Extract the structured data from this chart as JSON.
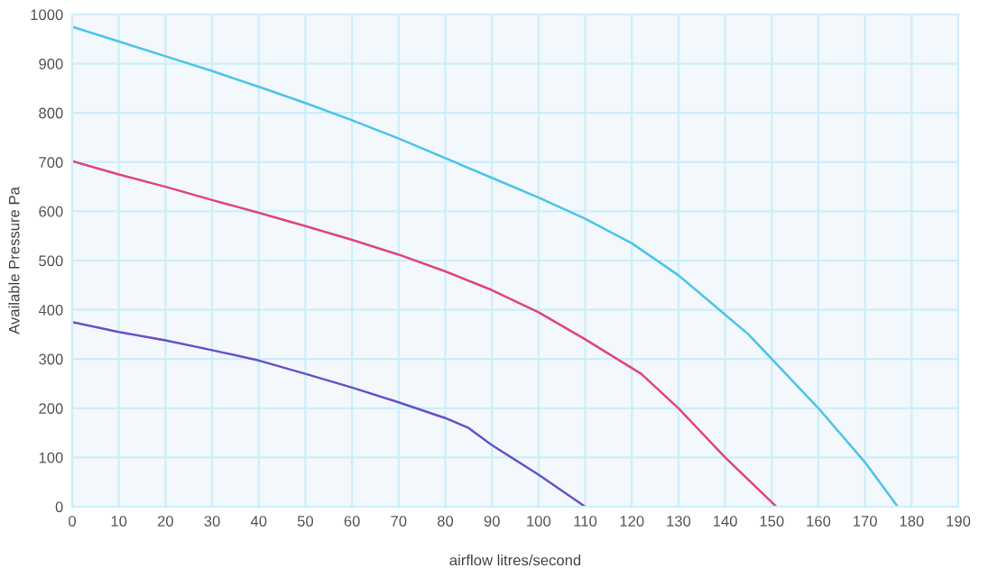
{
  "chart_data": {
    "type": "line",
    "xlabel": "airflow litres/second",
    "ylabel": "Available Pressure Pa",
    "xlim": [
      0,
      190
    ],
    "ylim": [
      0,
      1000
    ],
    "xticks": [
      0,
      10,
      20,
      30,
      40,
      50,
      60,
      70,
      80,
      90,
      100,
      110,
      120,
      130,
      140,
      150,
      160,
      170,
      180,
      190
    ],
    "yticks": [
      0,
      100,
      200,
      300,
      400,
      500,
      600,
      700,
      800,
      900,
      1000
    ],
    "grid": true,
    "series": [
      {
        "color": "#4cc3e8",
        "x": [
          0,
          10,
          20,
          30,
          40,
          50,
          60,
          70,
          80,
          90,
          100,
          110,
          120,
          130,
          140,
          145,
          150,
          160,
          170,
          177
        ],
        "values": [
          975,
          945,
          915,
          885,
          853,
          820,
          785,
          748,
          708,
          668,
          628,
          585,
          535,
          470,
          390,
          350,
          300,
          200,
          90,
          0
        ]
      },
      {
        "color": "#e0457b",
        "x": [
          0,
          10,
          20,
          30,
          40,
          50,
          60,
          70,
          80,
          90,
          100,
          110,
          122,
          130,
          140,
          151
        ],
        "values": [
          702,
          675,
          650,
          623,
          597,
          570,
          542,
          512,
          478,
          440,
          395,
          340,
          270,
          200,
          100,
          0
        ]
      },
      {
        "color": "#6a4fc8",
        "x": [
          0,
          10,
          20,
          30,
          40,
          50,
          60,
          70,
          80,
          85,
          90,
          100,
          110
        ],
        "values": [
          375,
          355,
          338,
          318,
          297,
          270,
          242,
          212,
          180,
          160,
          125,
          65,
          0
        ]
      }
    ]
  }
}
